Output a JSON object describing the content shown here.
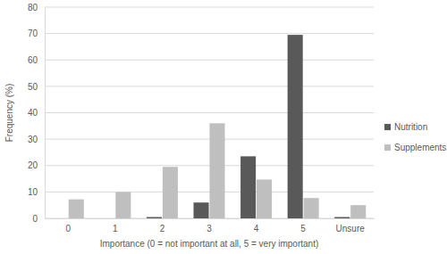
{
  "chart_data": {
    "type": "bar",
    "x_label": "Importance (0 = not important at all, 5 = very important)",
    "y_label": "Frequency (%)",
    "categories": [
      "0",
      "1",
      "2",
      "3",
      "4",
      "5",
      "Unsure"
    ],
    "series": [
      {
        "name": "Nutrition",
        "color": "#595959",
        "values": [
          0,
          0,
          0.5,
          6,
          23.5,
          69.5,
          0.5
        ]
      },
      {
        "name": "Supplements",
        "color": "#bfbfbf",
        "values": [
          7.2,
          10,
          19.5,
          36,
          14.7,
          7.7,
          5
        ]
      }
    ],
    "ylim": [
      0,
      80
    ],
    "yticks": [
      0,
      10,
      20,
      30,
      40,
      50,
      60,
      70,
      80
    ],
    "grid": true,
    "legend": "right"
  }
}
